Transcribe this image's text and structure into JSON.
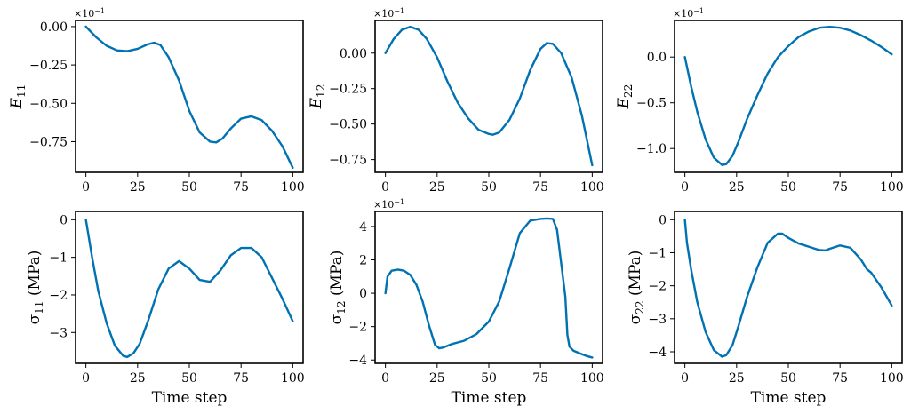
{
  "figure": {
    "line_color": "#0072B2"
  },
  "chart_data": [
    {
      "type": "line",
      "name": "E11",
      "ylabel_main": "E",
      "ylabel_sub": "11",
      "ylabel_unit": "",
      "multiplier": "×10",
      "multiplier_exp": "−1",
      "xlabel": "",
      "xlim": [
        -5,
        105
      ],
      "ylim": [
        -0.95,
        0.04
      ],
      "xticks": [
        0,
        25,
        50,
        75,
        100
      ],
      "xtick_labels": [
        "0",
        "25",
        "50",
        "75",
        "100"
      ],
      "yticks": [
        0,
        -0.25,
        -0.5,
        -0.75
      ],
      "ytick_labels": [
        "0.00",
        "−0.25",
        "−0.50",
        "−0.75"
      ],
      "series": [
        {
          "name": "E11",
          "x": [
            0,
            5,
            10,
            15,
            20,
            25,
            30,
            33,
            36,
            40,
            45,
            50,
            55,
            60,
            63,
            66,
            70,
            75,
            80,
            85,
            90,
            95,
            100
          ],
          "y": [
            0,
            -0.07,
            -0.125,
            -0.155,
            -0.16,
            -0.145,
            -0.115,
            -0.105,
            -0.12,
            -0.2,
            -0.35,
            -0.55,
            -0.69,
            -0.75,
            -0.755,
            -0.73,
            -0.665,
            -0.6,
            -0.585,
            -0.61,
            -0.68,
            -0.78,
            -0.92
          ]
        }
      ]
    },
    {
      "type": "line",
      "name": "E12",
      "ylabel_main": "E",
      "ylabel_sub": "12",
      "ylabel_unit": "",
      "multiplier": "×10",
      "multiplier_exp": "−1",
      "xlabel": "",
      "xlim": [
        -5,
        105
      ],
      "ylim": [
        -0.84,
        0.23
      ],
      "xticks": [
        0,
        25,
        50,
        75,
        100
      ],
      "xtick_labels": [
        "0",
        "25",
        "50",
        "75",
        "100"
      ],
      "yticks": [
        0,
        -0.25,
        -0.5,
        -0.75
      ],
      "ytick_labels": [
        "0.00",
        "−0.25",
        "−0.50",
        "−0.75"
      ],
      "series": [
        {
          "name": "E12",
          "x": [
            0,
            4,
            8,
            12,
            16,
            20,
            25,
            30,
            35,
            40,
            45,
            50,
            52,
            55,
            60,
            65,
            70,
            75,
            78,
            81,
            85,
            90,
            95,
            100
          ],
          "y": [
            0,
            0.1,
            0.165,
            0.185,
            0.165,
            0.1,
            -0.03,
            -0.2,
            -0.35,
            -0.46,
            -0.54,
            -0.57,
            -0.575,
            -0.56,
            -0.47,
            -0.32,
            -0.12,
            0.03,
            0.07,
            0.065,
            0.0,
            -0.17,
            -0.44,
            -0.79
          ]
        }
      ]
    },
    {
      "type": "line",
      "name": "E22",
      "ylabel_main": "E",
      "ylabel_sub": "22",
      "ylabel_unit": "",
      "multiplier": "×10",
      "multiplier_exp": "−1",
      "xlabel": "",
      "xlim": [
        -5,
        105
      ],
      "ylim": [
        -1.26,
        0.4
      ],
      "xticks": [
        0,
        25,
        50,
        75,
        100
      ],
      "xtick_labels": [
        "0",
        "25",
        "50",
        "75",
        "100"
      ],
      "yticks": [
        0,
        -0.5,
        -1.0
      ],
      "ytick_labels": [
        "0.0",
        "−0.5",
        "−1.0"
      ],
      "series": [
        {
          "name": "E22",
          "x": [
            0,
            3,
            6,
            10,
            14,
            18,
            20,
            23,
            26,
            30,
            35,
            40,
            45,
            50,
            55,
            60,
            65,
            70,
            75,
            80,
            85,
            90,
            95,
            100
          ],
          "y": [
            0,
            -0.32,
            -0.6,
            -0.9,
            -1.1,
            -1.18,
            -1.17,
            -1.08,
            -0.92,
            -0.68,
            -0.42,
            -0.18,
            0.0,
            0.12,
            0.22,
            0.28,
            0.32,
            0.33,
            0.32,
            0.29,
            0.24,
            0.18,
            0.11,
            0.03
          ]
        }
      ]
    },
    {
      "type": "line",
      "name": "sigma11",
      "ylabel_main": "σ",
      "ylabel_sub": "11",
      "ylabel_unit": " (MPa)",
      "multiplier": "",
      "multiplier_exp": "",
      "xlabel": "Time step",
      "xlim": [
        -5,
        105
      ],
      "ylim": [
        -3.82,
        0.22
      ],
      "xticks": [
        0,
        25,
        50,
        75,
        100
      ],
      "xtick_labels": [
        "0",
        "25",
        "50",
        "75",
        "100"
      ],
      "yticks": [
        0,
        -1,
        -2,
        -3
      ],
      "ytick_labels": [
        "0",
        "−1",
        "−2",
        "−3"
      ],
      "series": [
        {
          "name": "sigma11",
          "x": [
            0,
            3,
            6,
            10,
            14,
            18,
            20,
            23,
            26,
            30,
            35,
            40,
            45,
            50,
            55,
            60,
            65,
            70,
            75,
            80,
            85,
            90,
            95,
            100
          ],
          "y": [
            0,
            -1.0,
            -1.9,
            -2.75,
            -3.35,
            -3.62,
            -3.65,
            -3.55,
            -3.3,
            -2.7,
            -1.85,
            -1.3,
            -1.1,
            -1.3,
            -1.6,
            -1.65,
            -1.35,
            -0.95,
            -0.75,
            -0.75,
            -1.0,
            -1.55,
            -2.1,
            -2.7
          ]
        }
      ]
    },
    {
      "type": "line",
      "name": "sigma12",
      "ylabel_main": "σ",
      "ylabel_sub": "12",
      "ylabel_unit": " (MPa)",
      "multiplier": "×10",
      "multiplier_exp": "−1",
      "xlabel": "Time step",
      "xlim": [
        -5,
        105
      ],
      "ylim": [
        -4.2,
        4.9
      ],
      "xticks": [
        0,
        25,
        50,
        75,
        100
      ],
      "xtick_labels": [
        "0",
        "25",
        "50",
        "75",
        "100"
      ],
      "yticks": [
        4,
        2,
        0,
        -2,
        -4
      ],
      "ytick_labels": [
        "4",
        "2",
        "0",
        "−2",
        "−4"
      ],
      "series": [
        {
          "name": "sigma12",
          "x": [
            0,
            1,
            3,
            6,
            9,
            12,
            15,
            18,
            21,
            24,
            26,
            28,
            32,
            38,
            44,
            50,
            55,
            60,
            65,
            70,
            75,
            78,
            81,
            83,
            85,
            87,
            88,
            89,
            91,
            94,
            97,
            100
          ],
          "y": [
            0,
            1.0,
            1.35,
            1.42,
            1.35,
            1.1,
            0.5,
            -0.5,
            -1.9,
            -3.1,
            -3.3,
            -3.25,
            -3.05,
            -2.85,
            -2.45,
            -1.7,
            -0.5,
            1.5,
            3.6,
            4.35,
            4.45,
            4.48,
            4.45,
            3.8,
            1.8,
            -0.2,
            -2.5,
            -3.2,
            -3.45,
            -3.6,
            -3.75,
            -3.85
          ]
        }
      ]
    },
    {
      "type": "line",
      "name": "sigma22",
      "ylabel_main": "σ",
      "ylabel_sub": "22",
      "ylabel_unit": " (MPa)",
      "multiplier": "",
      "multiplier_exp": "",
      "xlabel": "Time step",
      "xlim": [
        -5,
        105
      ],
      "ylim": [
        -4.35,
        0.25
      ],
      "xticks": [
        0,
        25,
        50,
        75,
        100
      ],
      "xtick_labels": [
        "0",
        "25",
        "50",
        "75",
        "100"
      ],
      "yticks": [
        0,
        -1,
        -2,
        -3,
        -4
      ],
      "ytick_labels": [
        "0",
        "−1",
        "−2",
        "−3",
        "−4"
      ],
      "series": [
        {
          "name": "sigma22",
          "x": [
            0,
            1,
            3,
            6,
            10,
            14,
            18,
            20,
            23,
            26,
            30,
            35,
            40,
            45,
            47,
            50,
            55,
            60,
            65,
            68,
            70,
            75,
            80,
            85,
            88,
            90,
            95,
            100
          ],
          "y": [
            0,
            -0.7,
            -1.5,
            -2.5,
            -3.4,
            -3.95,
            -4.15,
            -4.1,
            -3.8,
            -3.2,
            -2.35,
            -1.45,
            -0.7,
            -0.42,
            -0.42,
            -0.55,
            -0.72,
            -0.82,
            -0.92,
            -0.93,
            -0.88,
            -0.78,
            -0.85,
            -1.2,
            -1.5,
            -1.6,
            -2.05,
            -2.6
          ]
        }
      ]
    }
  ]
}
